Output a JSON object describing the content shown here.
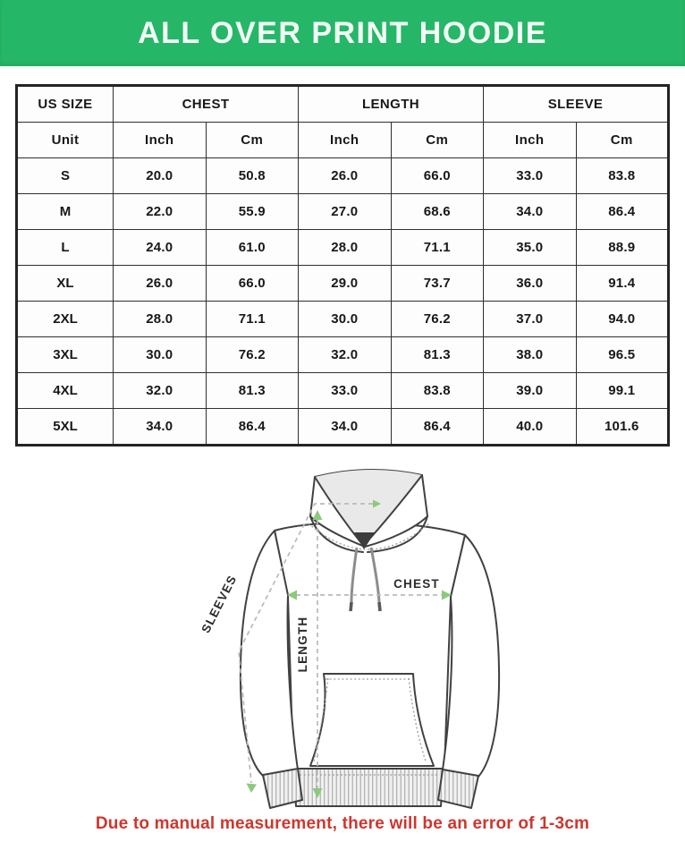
{
  "banner": {
    "title": "ALL OVER PRINT HOODIE",
    "bg_color": "#26b667",
    "text_color": "#f2fdf6"
  },
  "size_chart": {
    "group_headers": [
      "US SIZE",
      "CHEST",
      "LENGTH",
      "SLEEVE"
    ],
    "unit_header": [
      "Unit",
      "Inch",
      "Cm",
      "Inch",
      "Cm",
      "Inch",
      "Cm"
    ],
    "rows": [
      [
        "S",
        "20.0",
        "50.8",
        "26.0",
        "66.0",
        "33.0",
        "83.8"
      ],
      [
        "M",
        "22.0",
        "55.9",
        "27.0",
        "68.6",
        "34.0",
        "86.4"
      ],
      [
        "L",
        "24.0",
        "61.0",
        "28.0",
        "71.1",
        "35.0",
        "88.9"
      ],
      [
        "XL",
        "26.0",
        "66.0",
        "29.0",
        "73.7",
        "36.0",
        "91.4"
      ],
      [
        "2XL",
        "28.0",
        "71.1",
        "30.0",
        "76.2",
        "37.0",
        "94.0"
      ],
      [
        "3XL",
        "30.0",
        "76.2",
        "32.0",
        "81.3",
        "38.0",
        "96.5"
      ],
      [
        "4XL",
        "32.0",
        "81.3",
        "33.0",
        "83.8",
        "39.0",
        "99.1"
      ],
      [
        "5XL",
        "34.0",
        "86.4",
        "34.0",
        "86.4",
        "40.0",
        "101.6"
      ]
    ],
    "border_color": "#2f2f2f"
  },
  "diagram": {
    "labels": {
      "sleeves": "SLEEVES",
      "chest": "CHEST",
      "length": "LENGTH"
    },
    "arrow_color": "#8cc97c",
    "dash_color": "#b6bcb2",
    "outline_color": "#414141"
  },
  "footnote": {
    "text": "Due to manual measurement, there will be an error of 1-3cm",
    "color": "#cd372e"
  },
  "chart_data": {
    "type": "table",
    "title": "ALL OVER PRINT HOODIE",
    "columns": [
      "US SIZE",
      "CHEST Inch",
      "CHEST Cm",
      "LENGTH Inch",
      "LENGTH Cm",
      "SLEEVE Inch",
      "SLEEVE Cm"
    ],
    "rows": [
      [
        "S",
        20.0,
        50.8,
        26.0,
        66.0,
        33.0,
        83.8
      ],
      [
        "M",
        22.0,
        55.9,
        27.0,
        68.6,
        34.0,
        86.4
      ],
      [
        "L",
        24.0,
        61.0,
        28.0,
        71.1,
        35.0,
        88.9
      ],
      [
        "XL",
        26.0,
        66.0,
        29.0,
        73.7,
        36.0,
        91.4
      ],
      [
        "2XL",
        28.0,
        71.1,
        30.0,
        76.2,
        37.0,
        94.0
      ],
      [
        "3XL",
        30.0,
        76.2,
        32.0,
        81.3,
        38.0,
        96.5
      ],
      [
        "4XL",
        32.0,
        81.3,
        33.0,
        83.8,
        39.0,
        99.1
      ],
      [
        "5XL",
        34.0,
        86.4,
        34.0,
        86.4,
        40.0,
        101.6
      ]
    ]
  }
}
